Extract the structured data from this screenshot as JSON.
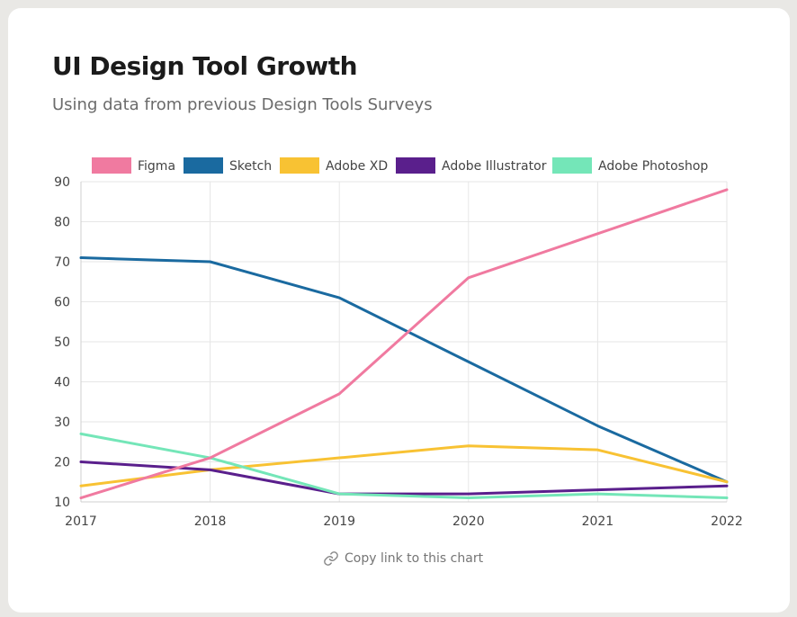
{
  "header": {
    "title": "UI Design Tool Growth",
    "subtitle": "Using data from previous Design Tools Surveys"
  },
  "footer": {
    "copy_link_label": "Copy link to this chart",
    "copy_link_icon": "link-icon"
  },
  "chart_data": {
    "type": "line",
    "title": "",
    "xlabel": "",
    "ylabel": "",
    "x": [
      "2017",
      "2018",
      "2019",
      "2020",
      "2021",
      "2022"
    ],
    "ylim": [
      10,
      90
    ],
    "yticks": [
      10,
      20,
      30,
      40,
      50,
      60,
      70,
      80,
      90
    ],
    "grid": true,
    "legend_position": "top",
    "series": [
      {
        "name": "Figma",
        "color": "#f07aa0",
        "values": [
          11,
          21,
          37,
          66,
          77,
          88
        ]
      },
      {
        "name": "Sketch",
        "color": "#1a6aa0",
        "values": [
          71,
          70,
          61,
          45,
          29,
          15
        ]
      },
      {
        "name": "Adobe XD",
        "color": "#f8c233",
        "values": [
          14,
          18,
          21,
          24,
          23,
          15
        ]
      },
      {
        "name": "Adobe Illustrator",
        "color": "#5a1f8c",
        "values": [
          20,
          18,
          12,
          12,
          13,
          14
        ]
      },
      {
        "name": "Adobe Photoshop",
        "color": "#74e6b8",
        "values": [
          27,
          21,
          12,
          11,
          12,
          11
        ]
      }
    ]
  }
}
